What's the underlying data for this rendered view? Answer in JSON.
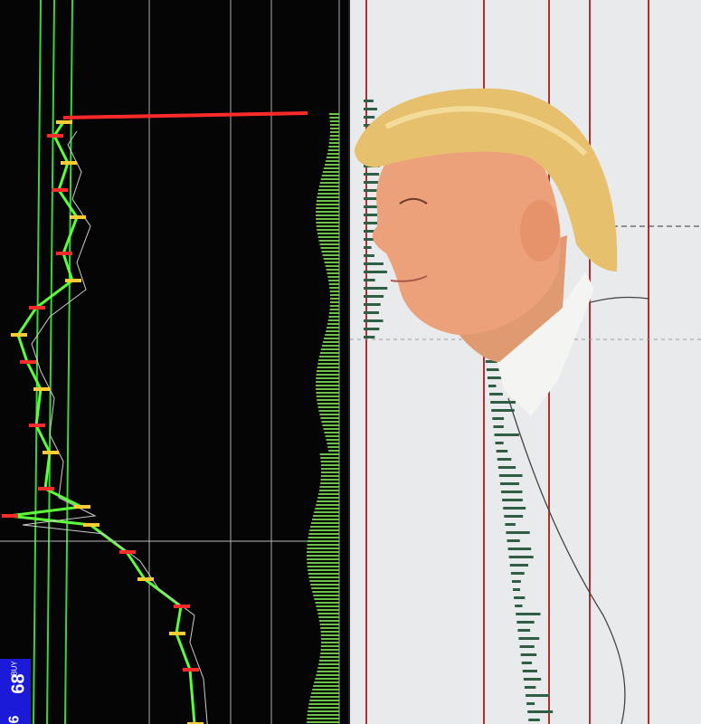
{
  "left_panel": {
    "description_icon": "candlestick-chart",
    "buy_label": "BUY",
    "price_big": "68",
    "price_small": "6",
    "colors": {
      "background": "#050505",
      "up": "#5dff3a",
      "down": "#ff2a2a",
      "volume": "#6cc24a"
    }
  },
  "right_panel": {
    "description_icon": "portrait-illustration",
    "colors": {
      "background": "#e9eaec",
      "gridline": "#b03030",
      "bars": "#2f5e45"
    }
  }
}
